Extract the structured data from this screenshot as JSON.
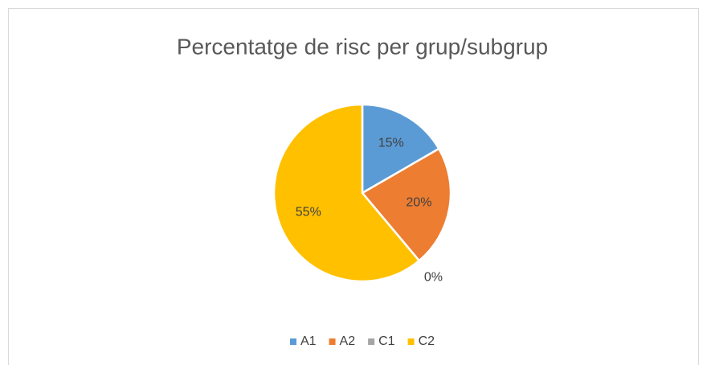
{
  "chart_data": {
    "type": "pie",
    "title": "Percentatge de risc per grup/subgrup",
    "categories": [
      "A1",
      "A2",
      "C1",
      "C2"
    ],
    "values": [
      15,
      20,
      0,
      55
    ],
    "value_labels": [
      "15%",
      "20%",
      "0%",
      "55%"
    ],
    "colors": [
      "#5b9bd5",
      "#ed7d31",
      "#a5a5a5",
      "#ffc000"
    ],
    "legend": "bottom"
  }
}
